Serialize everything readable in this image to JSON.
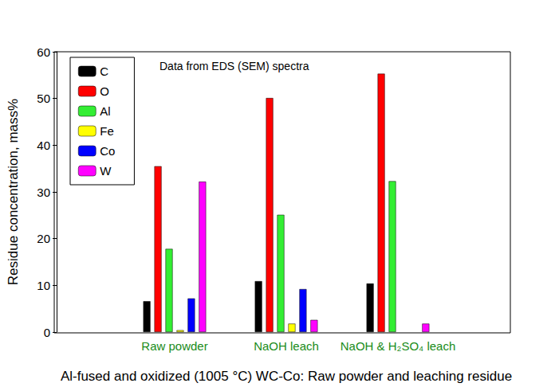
{
  "chart_data": {
    "type": "bar",
    "xlabel": "Al-fused and oxidized (1005 °C) WC-Co: Raw powder and leaching residue",
    "ylabel": "Residue concentration, mass%",
    "annotation": "Data from EDS (SEM) spectra",
    "categories": [
      "Raw powder",
      "NaOH leach",
      "NaOH & H₂SO₄ leach"
    ],
    "series": [
      {
        "name": "C",
        "color": "#000000",
        "values": [
          6.6,
          10.9,
          10.4
        ]
      },
      {
        "name": "O",
        "color": "#ff0000",
        "values": [
          35.5,
          50.1,
          55.3
        ]
      },
      {
        "name": "Al",
        "color": "#33ee33",
        "values": [
          17.8,
          25.1,
          32.3
        ]
      },
      {
        "name": "Fe",
        "color": "#ffff00",
        "values": [
          0.4,
          1.8,
          null
        ]
      },
      {
        "name": "Co",
        "color": "#0000ff",
        "values": [
          7.2,
          9.2,
          null
        ]
      },
      {
        "name": "W",
        "color": "#ff00ff",
        "values": [
          32.2,
          2.6,
          1.8
        ]
      }
    ],
    "ylim": [
      0,
      60
    ],
    "yticks": [
      0,
      10,
      20,
      30,
      40,
      50,
      60
    ],
    "grid": false,
    "legend": "upper left"
  }
}
